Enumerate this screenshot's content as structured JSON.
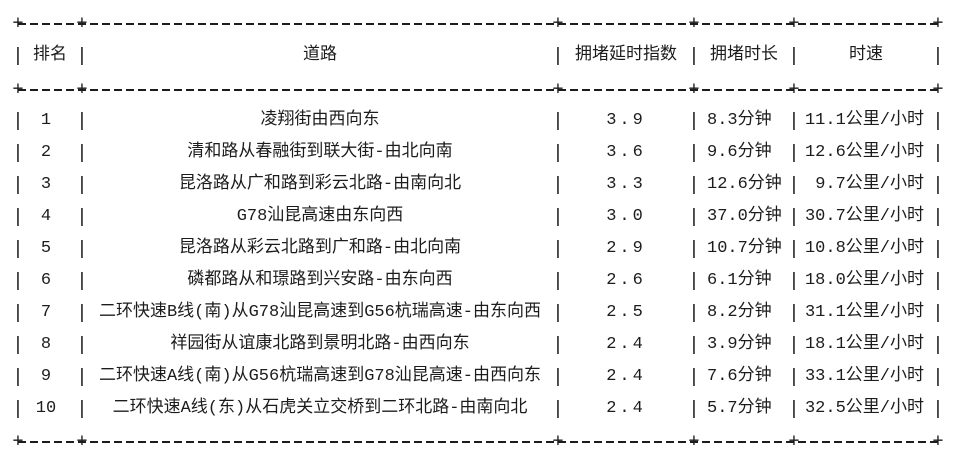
{
  "chart_data": {
    "type": "table",
    "title": "",
    "columns": [
      "排名",
      "道路",
      "拥堵延时指数",
      "拥堵时长",
      "时速"
    ],
    "rows": [
      [
        "1",
        "凌翔街由西向东",
        "3.9",
        "8.3分钟",
        "11.1公里/小时"
      ],
      [
        "2",
        "清和路从春融街到联大街-由北向南",
        "3.6",
        "9.6分钟",
        "12.6公里/小时"
      ],
      [
        "3",
        "昆洛路从广和路到彩云北路-由南向北",
        "3.3",
        "12.6分钟",
        "9.7公里/小时"
      ],
      [
        "4",
        "G78汕昆高速由东向西",
        "3.0",
        "37.0分钟",
        "30.7公里/小时"
      ],
      [
        "5",
        "昆洛路从彩云北路到广和路-由北向南",
        "2.9",
        "10.7分钟",
        "10.8公里/小时"
      ],
      [
        "6",
        "磷都路从和璟路到兴安路-由东向西",
        "2.6",
        "6.1分钟",
        "18.0公里/小时"
      ],
      [
        "7",
        "二环快速B线(南)从G78汕昆高速到G56杭瑞高速-由东向西",
        "2.5",
        "8.2分钟",
        "31.1公里/小时"
      ],
      [
        "8",
        "祥园街从谊康北路到景明北路-由西向东",
        "2.4",
        "3.9分钟",
        "18.1公里/小时"
      ],
      [
        "9",
        "二环快速A线(南)从G56杭瑞高速到G78汕昆高速-由西向东",
        "2.4",
        "7.6分钟",
        "33.1公里/小时"
      ],
      [
        "10",
        "二环快速A线(东)从石虎关立交桥到二环北路-由南向北",
        "2.4",
        "5.7分钟",
        "32.5公里/小时"
      ]
    ]
  },
  "glyphs": {
    "pipe": "|",
    "plus": "+"
  },
  "colors": {
    "text": "#1c1c1c",
    "background": "#ffffff"
  }
}
